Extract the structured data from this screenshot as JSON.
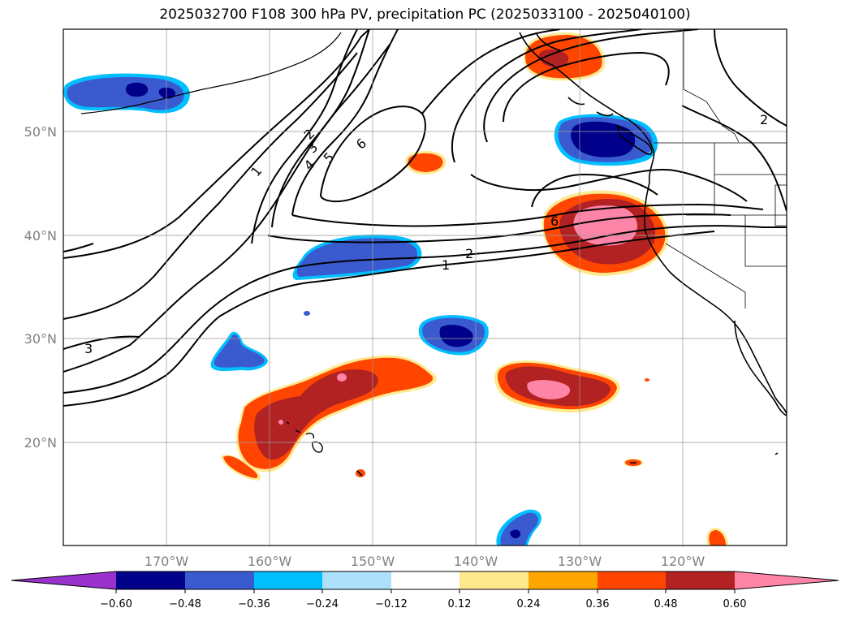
{
  "title": "2025032700 F108 300 hPa PV, precipitation PC (2025033100 - 2025040100)",
  "lat_labels": [
    "50°N",
    "40°N",
    "30°N",
    "20°N"
  ],
  "lon_labels": [
    "170°W",
    "160°W",
    "150°W",
    "140°W",
    "130°W",
    "120°W"
  ],
  "contour_labels": [
    "1",
    "2",
    "3",
    "4",
    "5",
    "6",
    "2",
    "1",
    "6",
    "3",
    "2"
  ],
  "colorbar": {
    "ticks": [
      "−0.60",
      "−0.48",
      "−0.36",
      "−0.24",
      "−0.12",
      "0.12",
      "0.24",
      "0.36",
      "0.48",
      "0.60"
    ],
    "colors": [
      "#9932CC",
      "#00008B",
      "#3A5BD0",
      "#00BFFF",
      "#ADE0FA",
      "#FFFFFF",
      "#FFE98F",
      "#FFA500",
      "#FF4500",
      "#B22222",
      "#FF85A8"
    ]
  }
}
